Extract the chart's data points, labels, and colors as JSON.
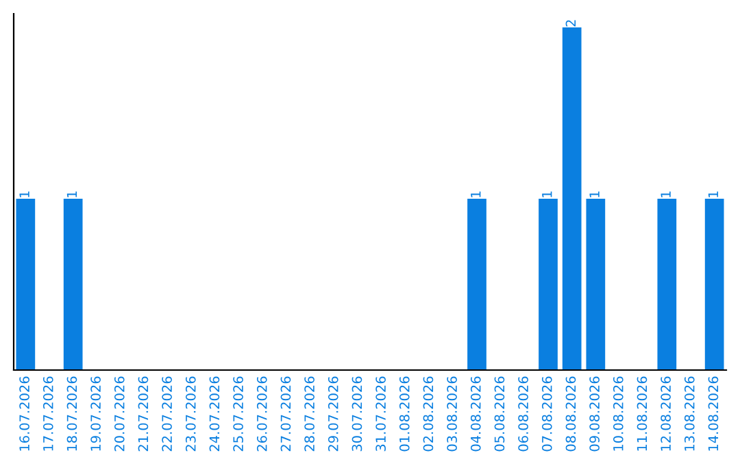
{
  "chart_data": {
    "type": "bar",
    "categories": [
      "16.07.2026",
      "17.07.2026",
      "18.07.2026",
      "19.07.2026",
      "20.07.2026",
      "21.07.2026",
      "22.07.2026",
      "23.07.2026",
      "24.07.2026",
      "25.07.2026",
      "26.07.2026",
      "27.07.2026",
      "28.07.2026",
      "29.07.2026",
      "30.07.2026",
      "31.07.2026",
      "01.08.2026",
      "02.08.2026",
      "03.08.2026",
      "04.08.2026",
      "05.08.2026",
      "06.08.2026",
      "07.08.2026",
      "08.08.2026",
      "09.08.2026",
      "10.08.2026",
      "11.08.2026",
      "12.08.2026",
      "13.08.2026",
      "14.08.2026"
    ],
    "values": [
      1,
      0,
      1,
      0,
      0,
      0,
      0,
      0,
      0,
      0,
      0,
      0,
      0,
      0,
      0,
      0,
      0,
      0,
      0,
      1,
      0,
      0,
      1,
      2,
      1,
      0,
      0,
      1,
      0,
      1
    ],
    "value_labels": [
      "1",
      null,
      "1",
      null,
      null,
      null,
      null,
      null,
      null,
      null,
      null,
      null,
      null,
      null,
      null,
      null,
      null,
      null,
      null,
      "1",
      null,
      null,
      "1",
      "2",
      "1",
      null,
      null,
      "1",
      null,
      "1"
    ],
    "color": "#0a7fe0",
    "tick_labels": "x",
    "grid": false,
    "legend": false
  }
}
